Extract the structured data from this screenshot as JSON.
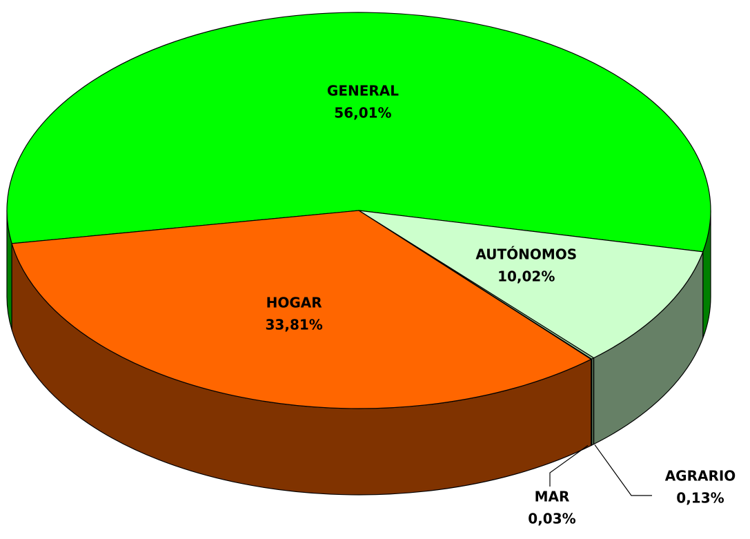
{
  "chart_data": {
    "type": "pie3d",
    "categories": [
      "GENERAL",
      "AUTÓNOMOS",
      "AGRARIO",
      "MAR",
      "HOGAR"
    ],
    "values": [
      56.01,
      10.02,
      0.13,
      0.03,
      33.81
    ],
    "value_labels": [
      "56,01%",
      "10,02%",
      "0,13%",
      "0,03%",
      "33,81%"
    ],
    "colors": [
      "#00ff00",
      "#ccffcc",
      "#99cc99",
      "#3366ff",
      "#ff6600"
    ]
  }
}
